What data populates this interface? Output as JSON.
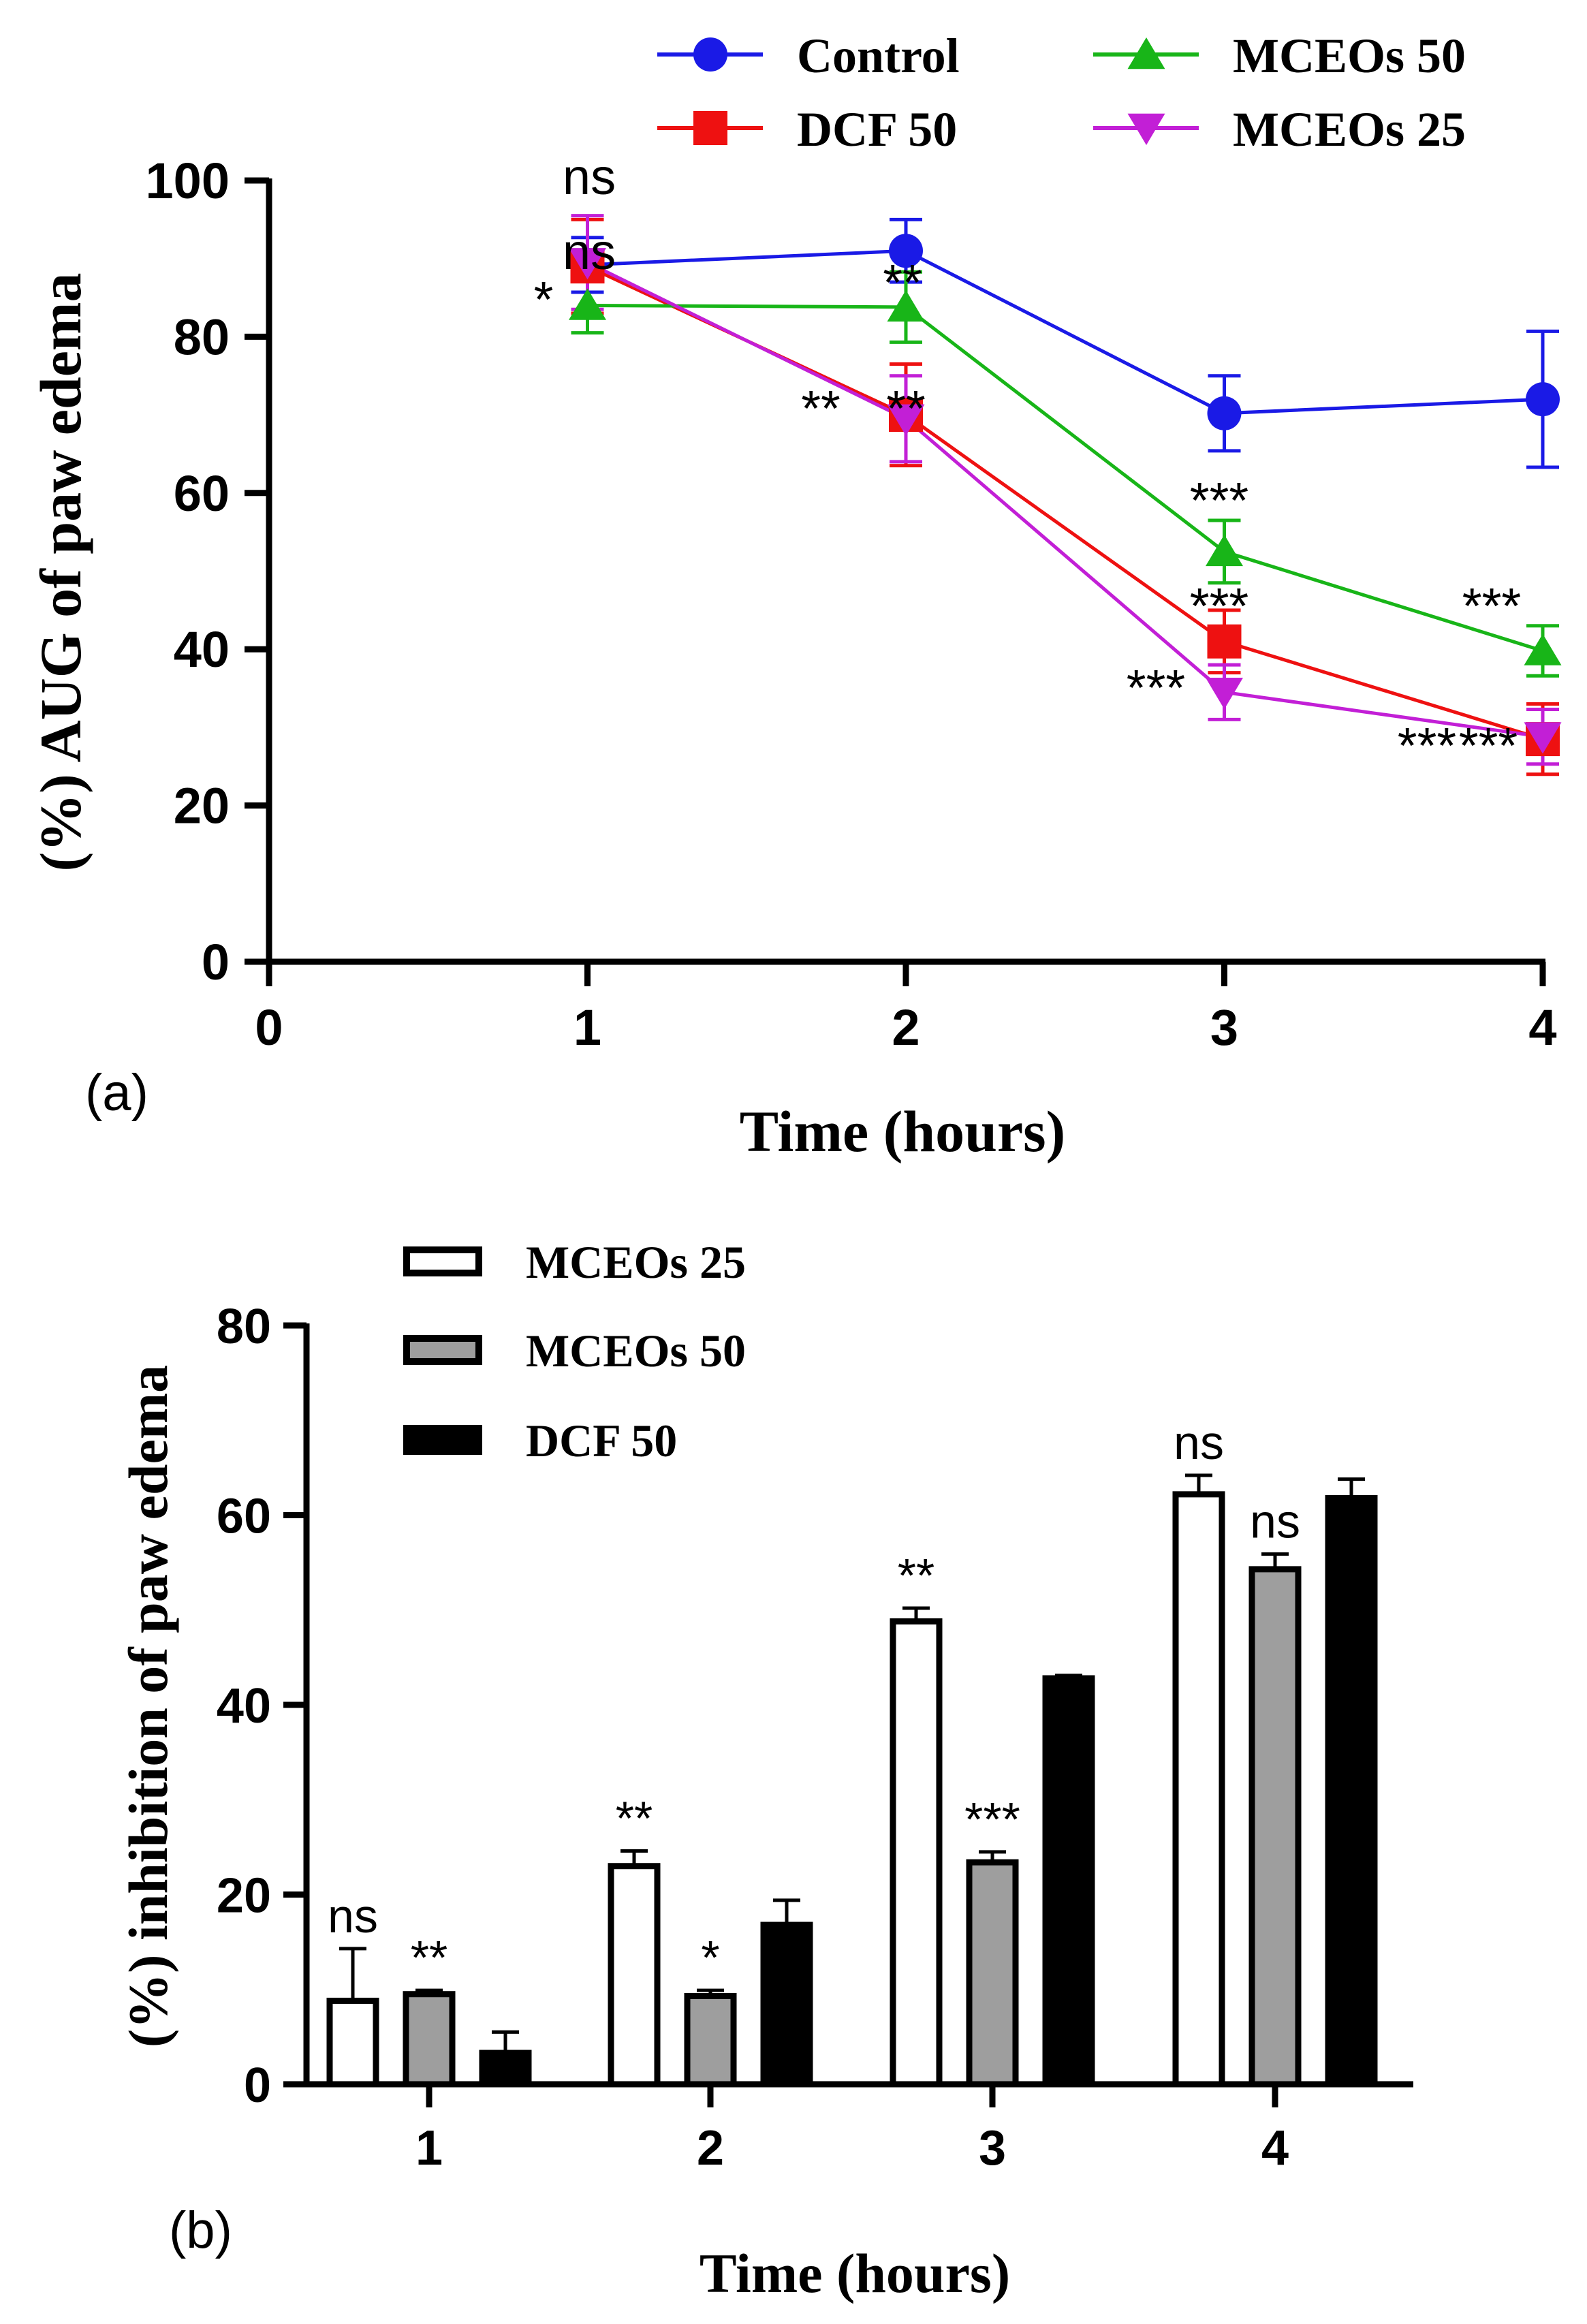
{
  "chart_data": [
    {
      "type": "line",
      "panel_label": "(a)",
      "xlabel": "Time (hours)",
      "ylabel": "(%) AUG of paw edema",
      "xlim": [
        0,
        4
      ],
      "ylim": [
        0,
        100
      ],
      "xticks": [
        "0",
        "1",
        "2",
        "3",
        "4"
      ],
      "yticks": [
        "0",
        "20",
        "40",
        "60",
        "80",
        "100"
      ],
      "legend_position": "top",
      "series": [
        {
          "name": "Control",
          "color": "#1a1ae6",
          "marker": "circle",
          "x": [
            1,
            2,
            3,
            4
          ],
          "y": [
            89.2,
            91.0,
            70.2,
            72.0
          ],
          "err": [
            3.5,
            4.0,
            4.8,
            8.7
          ],
          "annotations": [
            "",
            "",
            "",
            ""
          ]
        },
        {
          "name": "DCF 50",
          "color": "#ee1111",
          "marker": "square",
          "x": [
            1,
            2,
            3,
            4
          ],
          "y": [
            89.0,
            70.0,
            41.0,
            28.5
          ],
          "err": [
            6.0,
            6.5,
            4.0,
            4.5
          ],
          "annotations": [
            "ns",
            "**",
            "***",
            "***"
          ]
        },
        {
          "name": "MCEOs 50",
          "color": "#18b518",
          "marker": "triangle-up",
          "x": [
            1,
            2,
            3,
            4
          ],
          "y": [
            84.0,
            83.8,
            52.5,
            39.8
          ],
          "err": [
            3.5,
            4.5,
            4.0,
            3.2
          ],
          "annotations": [
            "*",
            "**",
            "***",
            "***"
          ]
        },
        {
          "name": "MCEOs 25",
          "color": "#c21fd6",
          "marker": "triangle-down",
          "x": [
            1,
            2,
            3,
            4
          ],
          "y": [
            89.5,
            69.5,
            34.5,
            28.8
          ],
          "err": [
            6.0,
            5.5,
            3.5,
            3.5
          ],
          "annotations": [
            "ns",
            "**",
            "***",
            "***"
          ]
        }
      ]
    },
    {
      "type": "bar",
      "panel_label": "(b)",
      "xlabel": "Time (hours)",
      "ylabel": "(%) inhibition of paw edema",
      "categories": [
        "1",
        "2",
        "3",
        "4"
      ],
      "ylim": [
        0,
        80
      ],
      "yticks": [
        "0",
        "20",
        "40",
        "60",
        "80"
      ],
      "legend_position": "top-left",
      "series": [
        {
          "name": "MCEOs 25",
          "fill": "#ffffff",
          "values": [
            8.8,
            23.0,
            48.8,
            62.2
          ],
          "err": [
            5.5,
            1.6,
            1.4,
            2.0
          ],
          "annotations": [
            "ns",
            "**",
            "**",
            "ns"
          ]
        },
        {
          "name": "MCEOs 50",
          "fill": "#9e9e9e",
          "values": [
            9.5,
            9.3,
            23.4,
            54.3
          ],
          "err": [
            0.4,
            0.6,
            1.1,
            1.6
          ],
          "annotations": [
            "**",
            "*",
            "***",
            "ns"
          ]
        },
        {
          "name": "DCF 50",
          "fill": "#000000",
          "values": [
            3.3,
            16.8,
            42.8,
            61.8
          ],
          "err": [
            2.2,
            2.6,
            0.3,
            2.0
          ],
          "annotations": [
            "",
            "",
            "",
            ""
          ]
        }
      ]
    }
  ]
}
